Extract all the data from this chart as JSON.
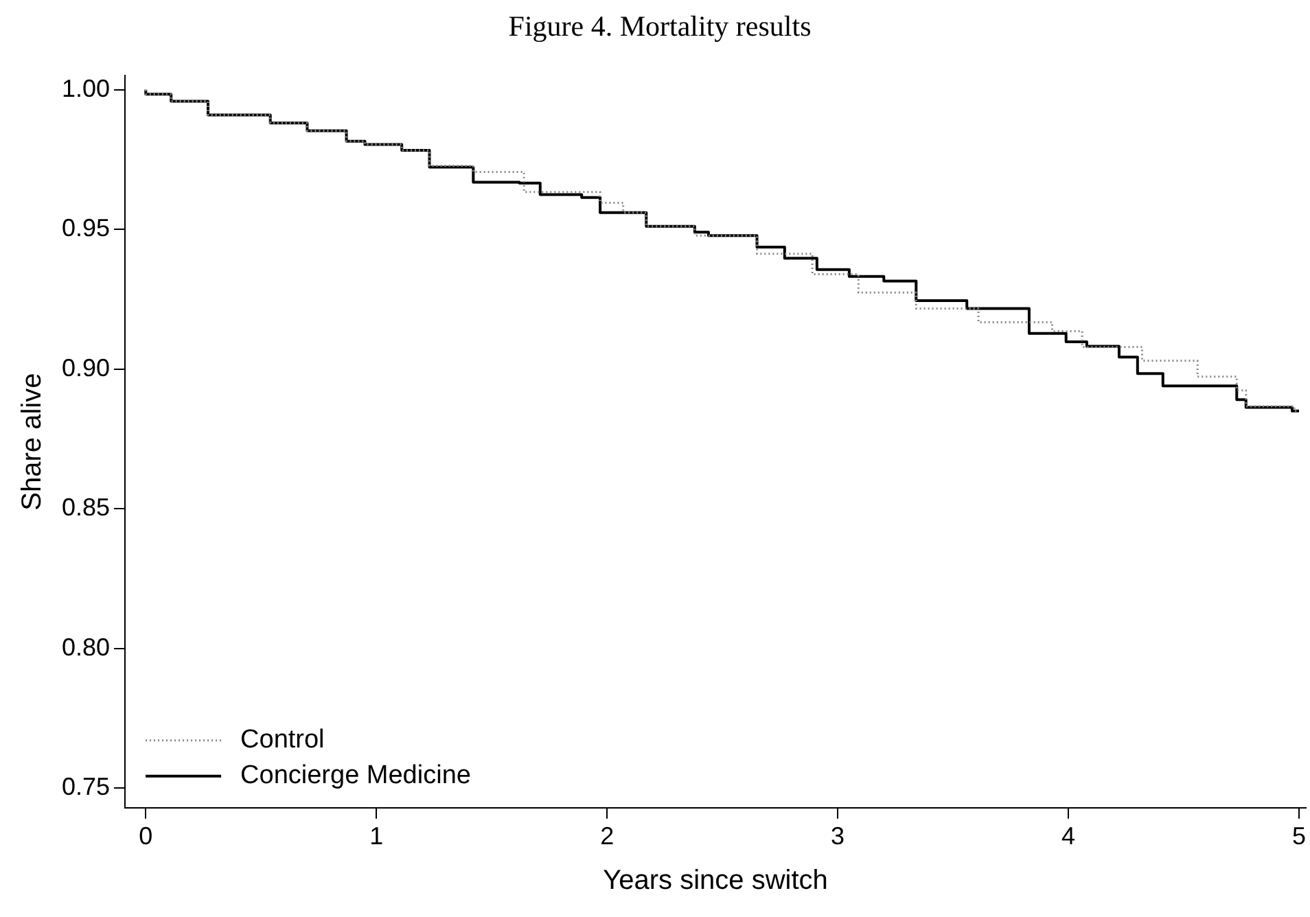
{
  "chart_data": {
    "type": "step",
    "title": "Figure 4. Mortality results",
    "xlabel": "Years since switch",
    "ylabel": "Share alive",
    "xlim": [
      -0.09,
      5.03
    ],
    "xticks": [
      0,
      1,
      2,
      3,
      4,
      5
    ],
    "ylim": [
      0.743,
      1.005
    ],
    "yticks": [
      {
        "value": 0.75,
        "label": "0.75"
      },
      {
        "value": 0.8,
        "label": "0.80"
      },
      {
        "value": 0.85,
        "label": "0.85"
      },
      {
        "value": 0.9,
        "label": "0.90"
      },
      {
        "value": 0.95,
        "label": "0.95"
      },
      {
        "value": 1,
        "label": "1.00"
      }
    ],
    "grid": false,
    "legend": "bottom left",
    "marker": "none",
    "series": [
      {
        "name": "Control",
        "color": "#888888",
        "line_style": "dotted",
        "x": [
          0,
          0.11,
          0.27,
          0.54,
          0.7,
          0.87,
          0.95,
          1.11,
          1.23,
          1.42,
          1.64,
          1.97,
          2.07,
          2.17,
          2.38,
          2.65,
          2.89,
          3.09,
          3.34,
          3.61,
          3.93,
          4.06,
          4.32,
          4.56,
          4.73,
          4.77,
          4.98,
          5.0
        ],
        "values": [
          1.0,
          0.9984,
          0.9959,
          0.991,
          0.9881,
          0.9853,
          0.9816,
          0.9804,
          0.9783,
          0.9728,
          0.9706,
          0.9634,
          0.9595,
          0.956,
          0.9511,
          0.9478,
          0.9413,
          0.934,
          0.9274,
          0.9217,
          0.9168,
          0.9136,
          0.9079,
          0.903,
          0.8973,
          0.8924,
          0.8867,
          0.885
        ]
      },
      {
        "name": "Concierge Medicine",
        "color": "#000000",
        "line_style": "solid",
        "x": [
          0,
          0.11,
          0.27,
          0.54,
          0.7,
          0.87,
          0.95,
          1.11,
          1.23,
          1.42,
          1.62,
          1.71,
          1.89,
          1.97,
          2.17,
          2.38,
          2.44,
          2.65,
          2.77,
          2.91,
          3.05,
          3.2,
          3.34,
          3.56,
          3.83,
          3.99,
          4.08,
          4.22,
          4.3,
          4.41,
          4.53,
          4.73,
          4.77,
          4.86,
          4.97,
          5.0
        ],
        "values": [
          1.0,
          0.9984,
          0.9959,
          0.991,
          0.9881,
          0.9853,
          0.9816,
          0.9804,
          0.9783,
          0.9723,
          0.9669,
          0.9666,
          0.9625,
          0.9614,
          0.956,
          0.9511,
          0.949,
          0.9478,
          0.9437,
          0.9397,
          0.9356,
          0.9332,
          0.9315,
          0.9245,
          0.9217,
          0.9128,
          0.9098,
          0.9082,
          0.9043,
          0.8984,
          0.894,
          0.894,
          0.8891,
          0.8863,
          0.8863,
          0.885
        ]
      }
    ]
  }
}
